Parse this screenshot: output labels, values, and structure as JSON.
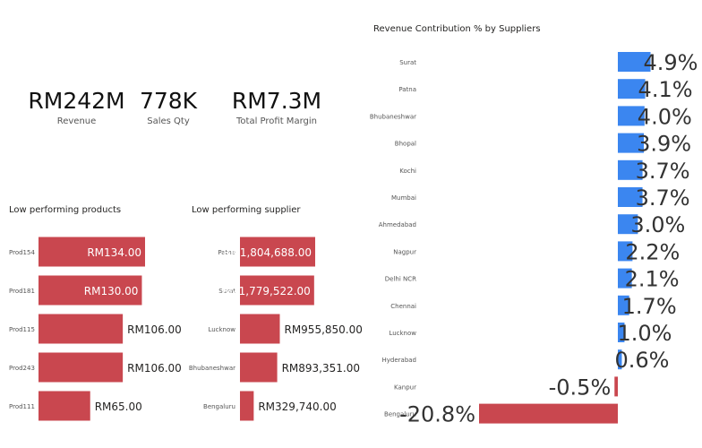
{
  "kpis": [
    {
      "value": "RM242M",
      "label": "Revenue"
    },
    {
      "value": "778K",
      "label": "Sales Qty"
    },
    {
      "value": "RM7.3M",
      "label": "Total Profit Margin"
    }
  ],
  "colors": {
    "bar_red": "#c9474f",
    "bar_blue": "#3b86f0",
    "text": "#252423",
    "label_light": "#ffffff"
  },
  "chart_data": [
    {
      "type": "bar",
      "orientation": "horizontal",
      "title": "Low performing products",
      "categories": [
        "Prod154",
        "Prod181",
        "Prod115",
        "Prod243",
        "Prod111"
      ],
      "values": [
        134.0,
        130.0,
        106.0,
        106.0,
        65.0
      ],
      "data_labels": [
        "RM134.00",
        "RM130.00",
        "RM106.00",
        "RM106.00",
        "RM65.00"
      ],
      "xlim": [
        0,
        134
      ]
    },
    {
      "type": "bar",
      "orientation": "horizontal",
      "title": "Low performing supplier",
      "categories": [
        "Patna",
        "Surat",
        "Lucknow",
        "Bhubaneshwar",
        "Bengaluru"
      ],
      "values": [
        1804688.0,
        1779522.0,
        955850.0,
        893351.0,
        329740.0
      ],
      "data_labels": [
        "RM1,804,688.00",
        "RM1,779,522.00",
        "RM955,850.00",
        "RM893,351.00",
        "RM329,740.00"
      ],
      "xlim": [
        0,
        1804688
      ]
    },
    {
      "type": "bar",
      "orientation": "horizontal",
      "title": "Revenue Contribution % by Suppliers",
      "categories": [
        "Surat",
        "Patna",
        "Bhubaneshwar",
        "Bhopal",
        "Kochi",
        "Mumbai",
        "Ahmedabad",
        "Nagpur",
        "Delhi NCR",
        "Chennai",
        "Lucknow",
        "Hyderabad",
        "Kanpur",
        "Bengaluru"
      ],
      "values": [
        4.9,
        4.1,
        4.0,
        3.9,
        3.7,
        3.7,
        3.0,
        2.2,
        2.1,
        1.7,
        1.0,
        0.6,
        -0.5,
        -20.8
      ],
      "data_labels": [
        "4.9%",
        "4.1%",
        "4.0%",
        "3.9%",
        "3.7%",
        "3.7%",
        "3.0%",
        "2.2%",
        "2.1%",
        "1.7%",
        "1.0%",
        "0.6%",
        "-0.5%",
        "-20.8%"
      ],
      "xlim": [
        -20.8,
        4.9
      ]
    }
  ]
}
